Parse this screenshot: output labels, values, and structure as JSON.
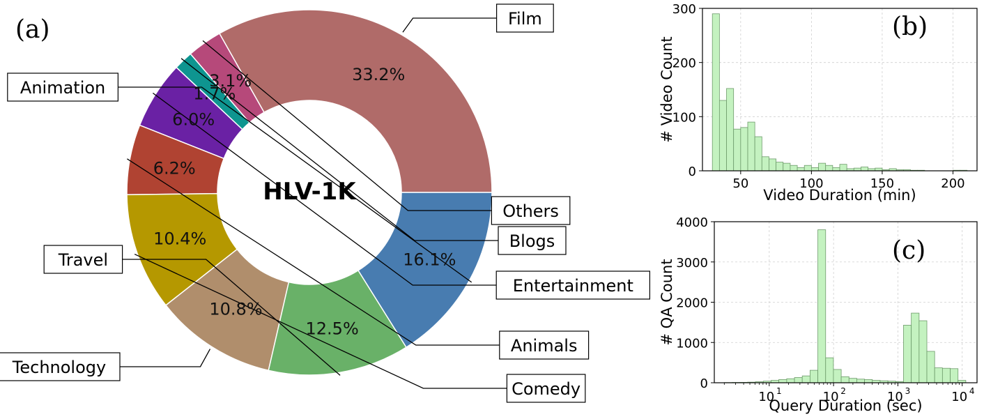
{
  "charts": [
    {
      "panel_label": "(a)",
      "center_label": "HLV-1K",
      "type": "pie",
      "slices": [
        {
          "name": "Film",
          "value": 33.2,
          "label": "33.2%",
          "color": "#b06b69"
        },
        {
          "name": "Others",
          "value": 3.1,
          "label": "3.1%",
          "color": "#b6497a"
        },
        {
          "name": "Blogs",
          "value": 1.7,
          "label": "1.7%",
          "color": "#0e9590"
        },
        {
          "name": "Entertainment",
          "value": 6.0,
          "label": "6.0%",
          "color": "#6a21a4"
        },
        {
          "name": "Animals",
          "value": 6.2,
          "label": "6.2%",
          "color": "#b04332"
        },
        {
          "name": "Comedy",
          "value": 10.4,
          "label": "10.4%",
          "color": "#b59800"
        },
        {
          "name": "Technology",
          "value": 10.8,
          "label": "10.8%",
          "color": "#b08e6c"
        },
        {
          "name": "Travel",
          "value": 12.5,
          "label": "12.5%",
          "color": "#69b168"
        },
        {
          "name": "Animation",
          "value": 16.1,
          "label": "16.1%",
          "color": "#487cb0"
        }
      ]
    },
    {
      "panel_label": "(b)",
      "type": "bar",
      "xlabel": "Video Duration (min)",
      "ylabel": "# Video Count",
      "xticks": [
        "50",
        "100",
        "150",
        "200"
      ],
      "yticks": [
        "0",
        "100",
        "200",
        "300"
      ],
      "xlim": [
        23,
        217
      ],
      "ylim": [
        0,
        300
      ],
      "grid": true,
      "bar_color": "#c4f2c0",
      "bar_edge": "#6d9a6a",
      "bins": [
        {
          "x0": 30,
          "x1": 35,
          "y": 290
        },
        {
          "x0": 35,
          "x1": 40,
          "y": 130
        },
        {
          "x0": 40,
          "x1": 45,
          "y": 152
        },
        {
          "x0": 45,
          "x1": 50,
          "y": 77
        },
        {
          "x0": 50,
          "x1": 55,
          "y": 80
        },
        {
          "x0": 55,
          "x1": 60,
          "y": 90
        },
        {
          "x0": 60,
          "x1": 65,
          "y": 63
        },
        {
          "x0": 65,
          "x1": 70,
          "y": 26
        },
        {
          "x0": 70,
          "x1": 75,
          "y": 22
        },
        {
          "x0": 75,
          "x1": 80,
          "y": 16
        },
        {
          "x0": 80,
          "x1": 85,
          "y": 14
        },
        {
          "x0": 85,
          "x1": 90,
          "y": 10
        },
        {
          "x0": 90,
          "x1": 95,
          "y": 6
        },
        {
          "x0": 95,
          "x1": 100,
          "y": 10
        },
        {
          "x0": 100,
          "x1": 105,
          "y": 6
        },
        {
          "x0": 105,
          "x1": 110,
          "y": 14
        },
        {
          "x0": 110,
          "x1": 115,
          "y": 10
        },
        {
          "x0": 115,
          "x1": 120,
          "y": 6
        },
        {
          "x0": 120,
          "x1": 125,
          "y": 12
        },
        {
          "x0": 125,
          "x1": 130,
          "y": 4
        },
        {
          "x0": 130,
          "x1": 135,
          "y": 5
        },
        {
          "x0": 135,
          "x1": 140,
          "y": 7
        },
        {
          "x0": 140,
          "x1": 145,
          "y": 4
        },
        {
          "x0": 145,
          "x1": 150,
          "y": 5
        },
        {
          "x0": 150,
          "x1": 155,
          "y": 2
        },
        {
          "x0": 155,
          "x1": 160,
          "y": 4
        },
        {
          "x0": 160,
          "x1": 165,
          "y": 2
        },
        {
          "x0": 165,
          "x1": 170,
          "y": 2
        },
        {
          "x0": 170,
          "x1": 175,
          "y": 1
        },
        {
          "x0": 175,
          "x1": 180,
          "y": 1
        },
        {
          "x0": 180,
          "x1": 185,
          "y": 0
        },
        {
          "x0": 185,
          "x1": 190,
          "y": 0
        },
        {
          "x0": 190,
          "x1": 195,
          "y": 0
        },
        {
          "x0": 195,
          "x1": 200,
          "y": 0
        },
        {
          "x0": 200,
          "x1": 205,
          "y": 1
        },
        {
          "x0": 205,
          "x1": 210,
          "y": 1
        }
      ]
    },
    {
      "panel_label": "(c)",
      "type": "bar",
      "xlabel": "Query Duration (sec)",
      "ylabel": "# QA Count",
      "x_scale": "log",
      "xticks": [
        {
          "base": "10",
          "exp": "1",
          "value": 10
        },
        {
          "base": "10",
          "exp": "2",
          "value": 100
        },
        {
          "base": "10",
          "exp": "3",
          "value": 1000
        },
        {
          "base": "10",
          "exp": "4",
          "value": 10000
        }
      ],
      "yticks": [
        "0",
        "1000",
        "2000",
        "3000",
        "4000"
      ],
      "xlim": [
        1.4,
        17000
      ],
      "ylim": [
        0,
        4000
      ],
      "grid": true,
      "bar_color": "#c4f2c0",
      "bar_edge": "#6d9a6a",
      "bins": [
        {
          "x0": 2.0,
          "x1": 2.64,
          "y": 5
        },
        {
          "x0": 2.64,
          "x1": 3.5,
          "y": 8
        },
        {
          "x0": 3.5,
          "x1": 4.6,
          "y": 10
        },
        {
          "x0": 4.6,
          "x1": 6.1,
          "y": 15
        },
        {
          "x0": 6.1,
          "x1": 8.1,
          "y": 25
        },
        {
          "x0": 8.1,
          "x1": 10.7,
          "y": 40
        },
        {
          "x0": 10.7,
          "x1": 14.1,
          "y": 60
        },
        {
          "x0": 14.1,
          "x1": 18.7,
          "y": 80
        },
        {
          "x0": 18.7,
          "x1": 24.7,
          "y": 100
        },
        {
          "x0": 24.7,
          "x1": 32.6,
          "y": 130
        },
        {
          "x0": 32.6,
          "x1": 43.1,
          "y": 170
        },
        {
          "x0": 43.1,
          "x1": 57.0,
          "y": 310
        },
        {
          "x0": 57.0,
          "x1": 75.3,
          "y": 3800
        },
        {
          "x0": 75.3,
          "x1": 99.5,
          "y": 620
        },
        {
          "x0": 99.5,
          "x1": 131.5,
          "y": 330
        },
        {
          "x0": 131.5,
          "x1": 173.8,
          "y": 150
        },
        {
          "x0": 173.8,
          "x1": 229.6,
          "y": 110
        },
        {
          "x0": 229.6,
          "x1": 303.4,
          "y": 90
        },
        {
          "x0": 303.4,
          "x1": 401.0,
          "y": 80
        },
        {
          "x0": 401.0,
          "x1": 529.9,
          "y": 60
        },
        {
          "x0": 529.9,
          "x1": 700.3,
          "y": 50
        },
        {
          "x0": 700.3,
          "x1": 925.4,
          "y": 40
        },
        {
          "x0": 925.4,
          "x1": 1223,
          "y": 30
        },
        {
          "x0": 1223,
          "x1": 1616,
          "y": 1430
        },
        {
          "x0": 1616,
          "x1": 2136,
          "y": 1730
        },
        {
          "x0": 2136,
          "x1": 2822,
          "y": 1540
        },
        {
          "x0": 2822,
          "x1": 3729,
          "y": 780
        },
        {
          "x0": 3729,
          "x1": 4928,
          "y": 370
        },
        {
          "x0": 4928,
          "x1": 6512,
          "y": 360
        },
        {
          "x0": 6512,
          "x1": 8606,
          "y": 350
        },
        {
          "x0": 8606,
          "x1": 11372,
          "y": 60
        }
      ]
    }
  ]
}
